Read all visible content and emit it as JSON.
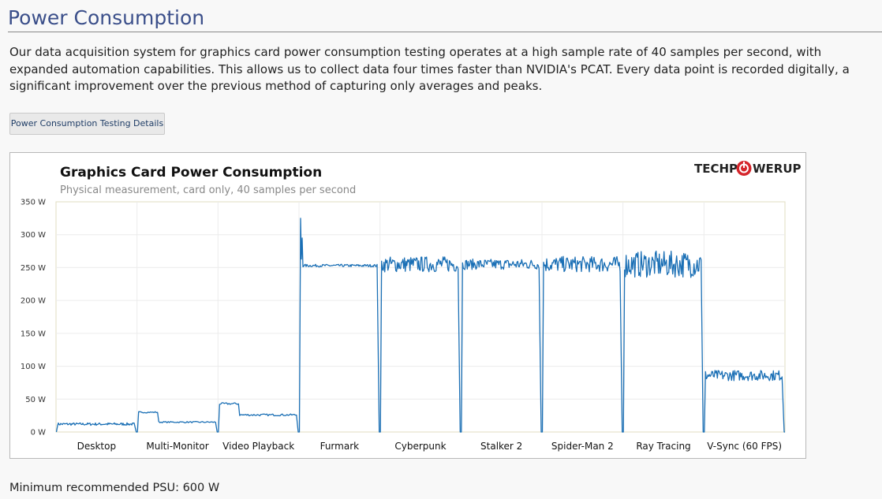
{
  "page": {
    "heading": "Power Consumption",
    "intro": "Our data acquisition system for graphics card power consumption testing operates at a high sample rate of 40 samples per second, with expanded automation capabilities. This allows us to collect data four times faster than NVIDIA's PCAT. Every data point is recorded digitally, a significant improvement over the previous method of capturing only averages and peaks.",
    "details_button": "Power Consumption Testing Details",
    "psu_note": "Minimum recommended PSU: 600 W"
  },
  "logo": {
    "left": "TECHP",
    "right": "WERUP",
    "icon": "power-icon"
  },
  "colors": {
    "line": "#1a6fb5",
    "heading": "#3b4f8a",
    "plot_border": "#e0dcc2"
  },
  "chart_data": {
    "type": "line",
    "title": "Graphics  Card  Power Consumption",
    "subtitle": "Physical measurement, card only, 40 samples per second",
    "y_ticks": [
      "350 W",
      "300 W",
      "250 W",
      "200 W",
      "150 W",
      "100 W",
      "50 W",
      "0 W"
    ],
    "ylim": [
      0,
      350
    ],
    "categories": [
      "Desktop",
      "Multi-Monitor",
      "Video Playback",
      "Furmark",
      "Cyberpunk",
      "Stalker 2",
      "Spider-Man 2",
      "Ray Tracing",
      "V-Sync (60 FPS)"
    ],
    "series": [
      {
        "values": [
          [
            12
          ],
          [
            30,
            15
          ],
          [
            43,
            26
          ],
          [
            325,
            253
          ],
          [
            255
          ],
          [
            255
          ],
          [
            255
          ],
          [
            255
          ],
          [
            86
          ]
        ],
        "noise": [
          2,
          2,
          3,
          4,
          12,
          8,
          12,
          20,
          8
        ]
      }
    ],
    "grid": true
  }
}
